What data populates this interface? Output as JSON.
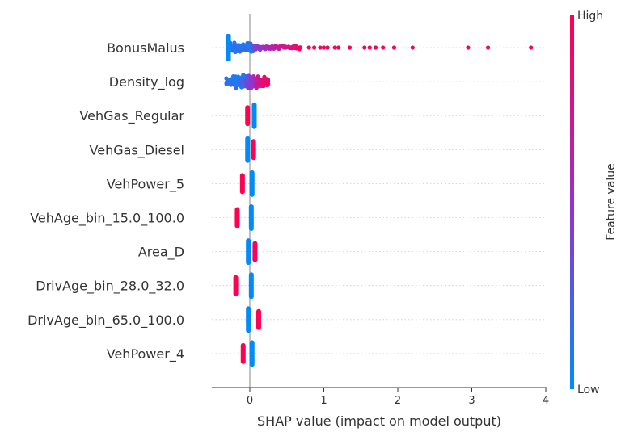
{
  "chart_data": {
    "type": "scatter",
    "subtype": "shap-beeswarm",
    "title": "",
    "xlabel": "SHAP value (impact on model output)",
    "ylabel": "",
    "xlim": [
      -0.52,
      4.0
    ],
    "x_ticks": [
      0,
      1,
      2,
      3,
      4
    ],
    "zero_line": true,
    "colors": {
      "low": "#008bfb",
      "high": "#ff0052",
      "mid": "#9b2fc8"
    },
    "colorbar": {
      "high_label": "High",
      "low_label": "Low",
      "title": "Feature value"
    },
    "features": [
      {
        "name": "BonusMalus",
        "low": {
          "min": -0.3,
          "max": 0.05,
          "width": 1.0
        },
        "spread_min": 0.05,
        "spread_max": 0.7,
        "outliers": [
          0.8,
          0.87,
          0.95,
          1.0,
          1.05,
          1.15,
          1.2,
          1.35,
          1.55,
          1.62,
          1.7,
          1.8,
          1.95,
          2.2,
          2.95,
          3.22,
          3.8
        ]
      },
      {
        "name": "Density_log",
        "low": {
          "min": -0.32,
          "max": 0.05,
          "width": 0.9
        },
        "spread_min": -0.05,
        "spread_max": 0.25
      },
      {
        "name": "VehGas_Regular",
        "clusters": [
          {
            "x": -0.03,
            "w": 0.06,
            "color": "high"
          },
          {
            "x": 0.06,
            "w": 0.04,
            "color": "low"
          }
        ]
      },
      {
        "name": "VehGas_Diesel",
        "clusters": [
          {
            "x": -0.03,
            "w": 0.04,
            "color": "low"
          },
          {
            "x": 0.05,
            "w": 0.05,
            "color": "high"
          }
        ]
      },
      {
        "name": "VehPower_5",
        "clusters": [
          {
            "x": -0.1,
            "w": 0.04,
            "color": "high"
          },
          {
            "x": 0.03,
            "w": 0.04,
            "color": "low"
          }
        ]
      },
      {
        "name": "VehAge_bin_15.0_100.0",
        "clusters": [
          {
            "x": -0.17,
            "w": 0.04,
            "color": "high"
          },
          {
            "x": 0.02,
            "w": 0.03,
            "color": "low"
          }
        ]
      },
      {
        "name": "Area_D",
        "clusters": [
          {
            "x": -0.02,
            "w": 0.04,
            "color": "low"
          },
          {
            "x": 0.07,
            "w": 0.05,
            "color": "high"
          }
        ]
      },
      {
        "name": "DrivAge_bin_28.0_32.0",
        "clusters": [
          {
            "x": -0.19,
            "w": 0.03,
            "color": "high"
          },
          {
            "x": 0.02,
            "w": 0.03,
            "color": "low"
          }
        ]
      },
      {
        "name": "DrivAge_bin_65.0_100.0",
        "clusters": [
          {
            "x": -0.02,
            "w": 0.04,
            "color": "low"
          },
          {
            "x": 0.12,
            "w": 0.04,
            "color": "high"
          }
        ]
      },
      {
        "name": "VehPower_4",
        "clusters": [
          {
            "x": -0.09,
            "w": 0.04,
            "color": "high"
          },
          {
            "x": 0.03,
            "w": 0.04,
            "color": "low"
          }
        ]
      }
    ]
  }
}
